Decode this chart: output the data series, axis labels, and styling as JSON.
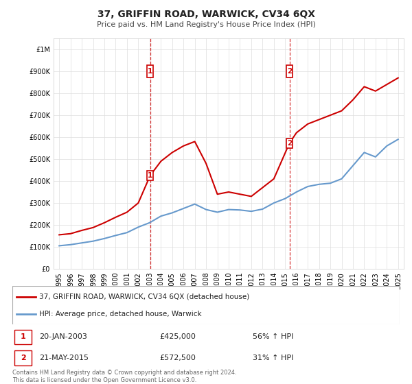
{
  "title": "37, GRIFFIN ROAD, WARWICK, CV34 6QX",
  "subtitle": "Price paid vs. HM Land Registry's House Price Index (HPI)",
  "legend_line1": "37, GRIFFIN ROAD, WARWICK, CV34 6QX (detached house)",
  "legend_line2": "HPI: Average price, detached house, Warwick",
  "footnote": "Contains HM Land Registry data © Crown copyright and database right 2024.\nThis data is licensed under the Open Government Licence v3.0.",
  "sale1_label": "1",
  "sale1_date": "20-JAN-2003",
  "sale1_price": "£425,000",
  "sale1_hpi": "56% ↑ HPI",
  "sale1_year": 2003.05,
  "sale1_value": 425000,
  "sale2_label": "2",
  "sale2_date": "21-MAY-2015",
  "sale2_price": "£572,500",
  "sale2_hpi": "31% ↑ HPI",
  "sale2_year": 2015.38,
  "sale2_value": 572500,
  "red_color": "#cc0000",
  "blue_color": "#6699cc",
  "dashed_color": "#cc0000",
  "grid_color": "#dddddd",
  "background_color": "#ffffff",
  "ylim": [
    0,
    1050000
  ],
  "xlim": [
    1994.5,
    2025.5
  ]
}
